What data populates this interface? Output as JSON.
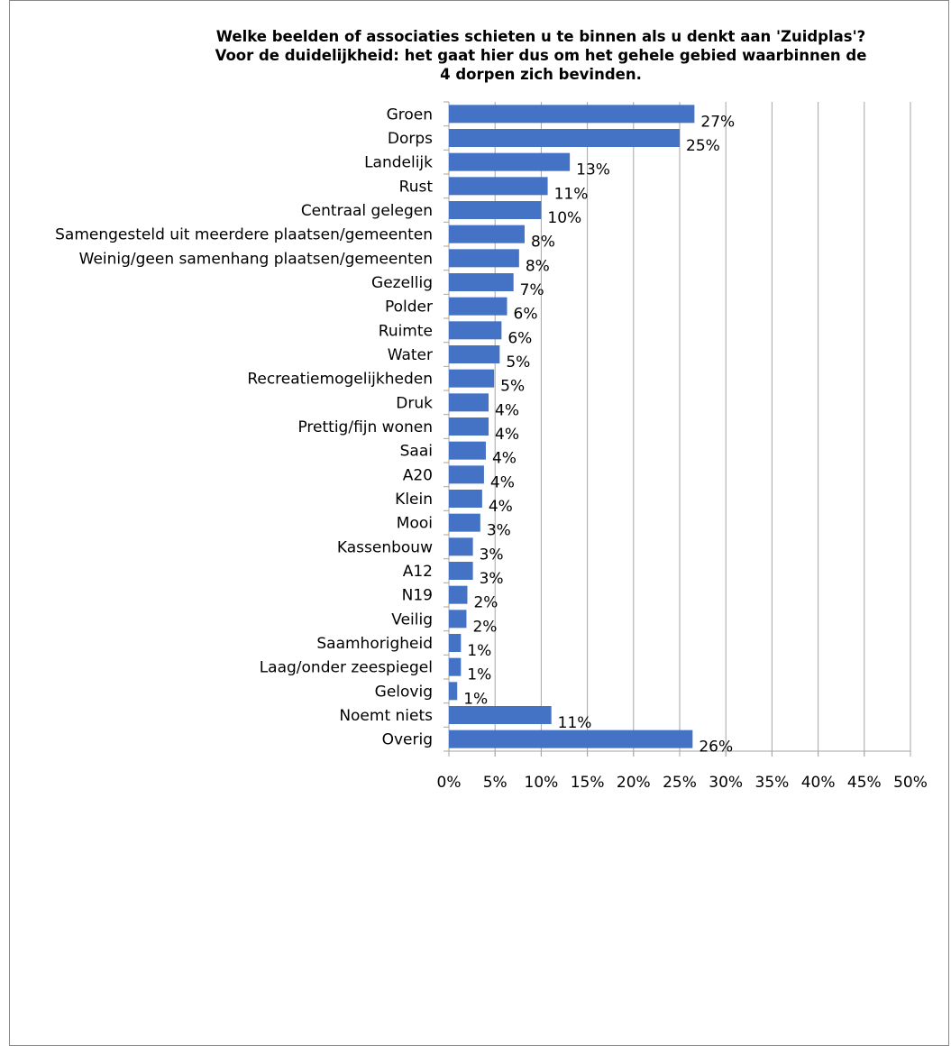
{
  "chart_data": {
    "type": "bar",
    "orientation": "horizontal",
    "title_lines": [
      "Welke beelden of associaties schieten u te binnen als u denkt aan 'Zuidplas'?",
      "Voor de duidelijkheid: het gaat hier  dus om het gehele gebied waarbinnen de",
      "4 dorpen zich bevinden."
    ],
    "categories": [
      "Groen",
      "Dorps",
      "Landelijk",
      "Rust",
      "Centraal gelegen",
      "Samengesteld uit meerdere plaatsen/gemeenten",
      "Weinig/geen samenhang plaatsen/gemeenten",
      "Gezellig",
      "Polder",
      "Ruimte",
      "Water",
      "Recreatiemogelijkheden",
      "Druk",
      "Prettig/fijn wonen",
      "Saai",
      "A20",
      "Klein",
      "Mooi",
      "Kassenbouw",
      "A12",
      "N19",
      "Veilig",
      "Saamhorigheid",
      "Laag/onder zeespiegel",
      "Gelovig",
      "Noemt niets",
      "Overig"
    ],
    "values": [
      26.6,
      25.0,
      13.1,
      10.7,
      10.0,
      8.2,
      7.6,
      7.0,
      6.3,
      5.7,
      5.5,
      4.9,
      4.3,
      4.3,
      4.0,
      3.8,
      3.6,
      3.4,
      2.6,
      2.6,
      2.0,
      1.9,
      1.3,
      1.3,
      0.9,
      11.1,
      26.4
    ],
    "value_labels": [
      "27%",
      "25%",
      "13%",
      "11%",
      "10%",
      "8%",
      "8%",
      "7%",
      "6%",
      "6%",
      "5%",
      "5%",
      "4%",
      "4%",
      "4%",
      "4%",
      "4%",
      "3%",
      "3%",
      "3%",
      "2%",
      "2%",
      "1%",
      "1%",
      "1%",
      "11%",
      "26%"
    ],
    "x_ticks": [
      "0%",
      "5%",
      "10%",
      "15%",
      "20%",
      "25%",
      "30%",
      "35%",
      "40%",
      "45%",
      "50%"
    ],
    "xlim": [
      0,
      50
    ],
    "grid": true,
    "legend": "none",
    "bar_color": "#4472C4",
    "grid_color": "#A6A6A6"
  }
}
